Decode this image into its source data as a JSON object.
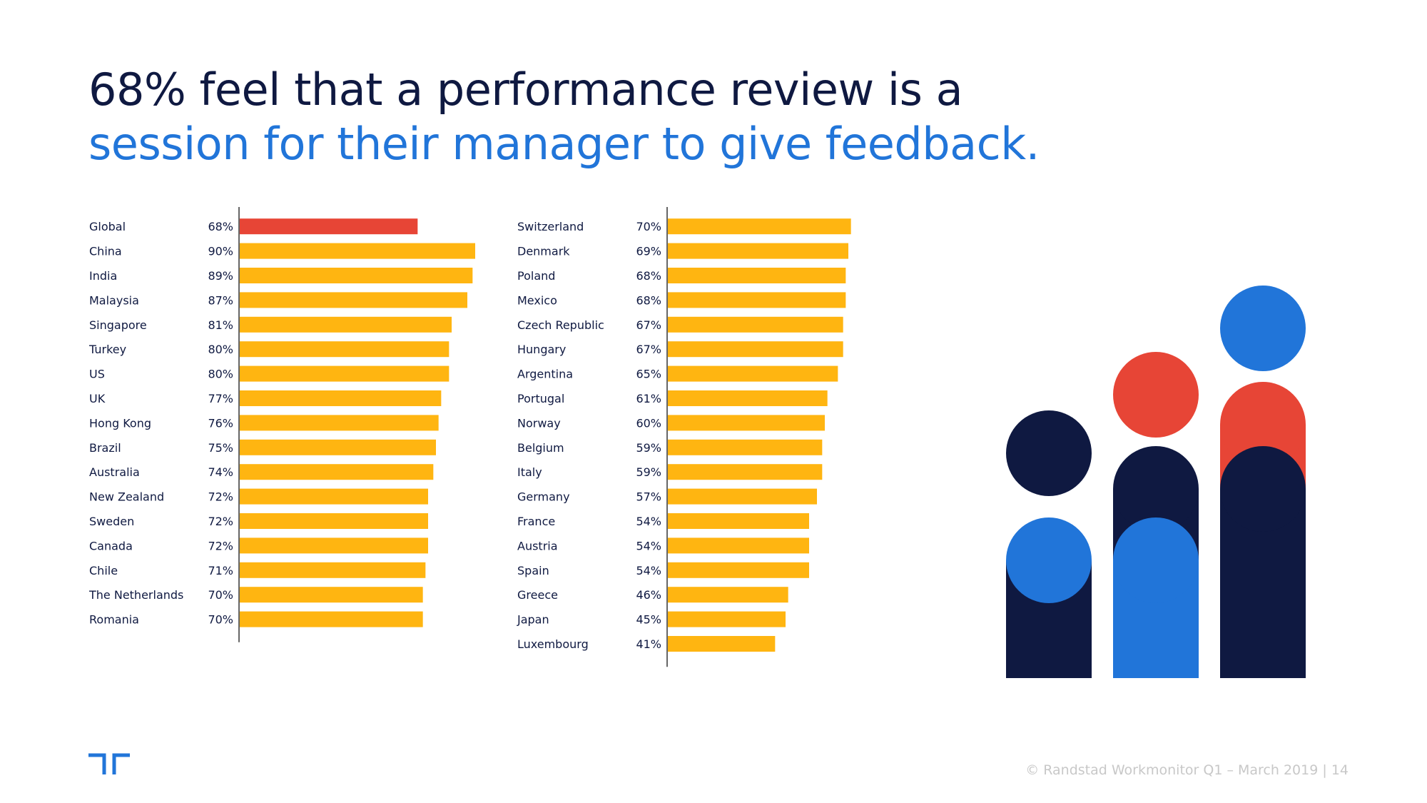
{
  "title": {
    "line1": "68% feel that a performance review is a",
    "line2": "session for their manager to give feedback."
  },
  "colors": {
    "highlight_bar": "#e74536",
    "bar": "#ffb511",
    "navy": "#0f1941",
    "blue": "#2175d9",
    "red": "#e74536"
  },
  "chart_data": [
    {
      "type": "bar",
      "orientation": "horizontal",
      "categories": [
        "Global",
        "China",
        "India",
        "Malaysia",
        "Singapore",
        "Turkey",
        "US",
        "UK",
        "Hong Kong",
        "Brazil",
        "Australia",
        "New Zealand",
        "Sweden",
        "Canada",
        "Chile",
        "The Netherlands",
        "Romania"
      ],
      "values": [
        68,
        90,
        89,
        87,
        81,
        80,
        80,
        77,
        76,
        75,
        74,
        72,
        72,
        72,
        71,
        70,
        70
      ],
      "value_labels": [
        "68%",
        "90%",
        "89%",
        "87%",
        "81%",
        "80%",
        "80%",
        "77%",
        "76%",
        "75%",
        "74%",
        "72%",
        "72%",
        "72%",
        "71%",
        "70%",
        "70%"
      ],
      "highlight": [
        "Global"
      ],
      "xlim": [
        0,
        100
      ]
    },
    {
      "type": "bar",
      "orientation": "horizontal",
      "categories": [
        "Switzerland",
        "Denmark",
        "Poland",
        "Mexico",
        "Czech Republic",
        "Hungary",
        "Argentina",
        "Portugal",
        "Norway",
        "Belgium",
        "Italy",
        "Germany",
        "France",
        "Austria",
        "Spain",
        "Greece",
        "Japan",
        "Luxembourg"
      ],
      "values": [
        70,
        69,
        68,
        68,
        67,
        67,
        65,
        61,
        60,
        59,
        59,
        57,
        54,
        54,
        54,
        46,
        45,
        41
      ],
      "value_labels": [
        "70%",
        "69%",
        "68%",
        "68%",
        "67%",
        "67%",
        "65%",
        "61%",
        "60%",
        "59%",
        "59%",
        "57%",
        "54%",
        "54%",
        "54%",
        "46%",
        "45%",
        "41%"
      ],
      "highlight": [],
      "xlim": [
        0,
        100
      ]
    }
  ],
  "footer": {
    "copyright": "© Randstad Workmonitor Q1 – March 2019",
    "separator": "|",
    "page_number": "14"
  }
}
